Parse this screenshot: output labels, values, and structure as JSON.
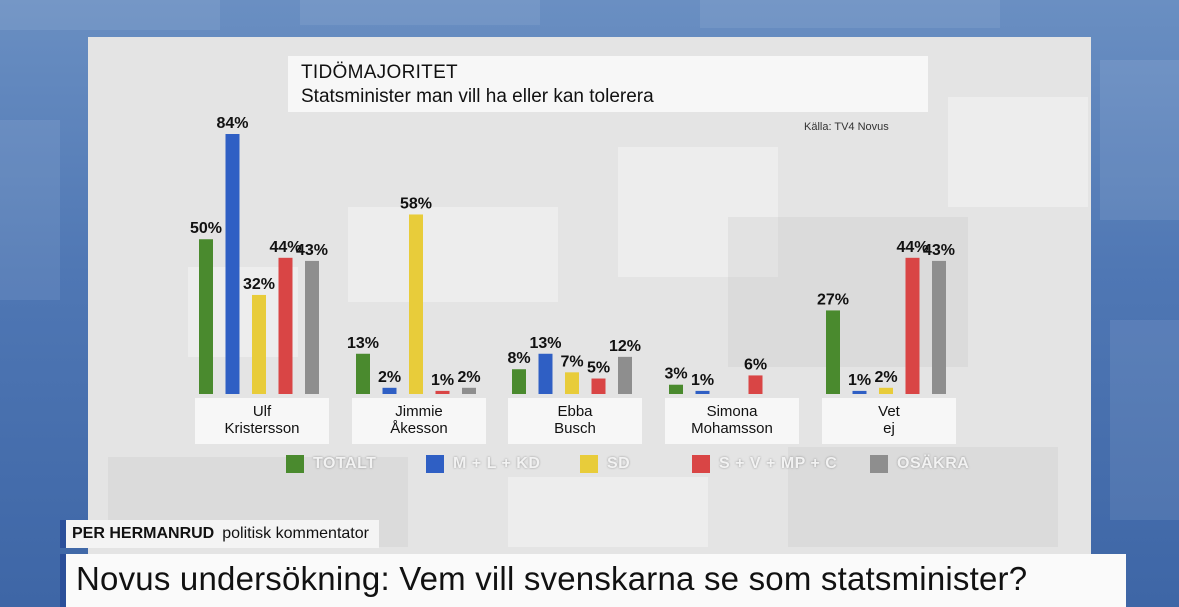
{
  "title": "TIDÖMAJORITET",
  "subtitle": "Statsminister man vill ha eller kan tolerera",
  "source": "Källa: TV4 Novus",
  "lower_third": {
    "name": "PER HERMANRUD",
    "role": "politisk kommentator",
    "headline": "Novus undersökning: Vem vill svenskarna se som statsminister?"
  },
  "colors": {
    "TOTALT": "#4a8a2e",
    "M + L + KD": "#2f5fc4",
    "SD": "#e8cc3a",
    "S + V + MP + C": "#d94545",
    "OSÄKRA": "#8e8e8e"
  },
  "chart_data": {
    "type": "bar",
    "title": "TIDÖMAJORITET",
    "subtitle": "Statsminister man vill ha eller kan tolerera",
    "categories": [
      "Ulf\nKristersson",
      "Jimmie\nÅkesson",
      "Ebba\nBusch",
      "Simona\nMohamsson",
      "Vet\nej"
    ],
    "ylim": [
      0,
      84
    ],
    "series": [
      {
        "name": "TOTALT",
        "values": [
          50,
          13,
          8,
          3,
          27
        ],
        "labels": [
          "50%",
          "13%",
          "8%",
          "3%",
          "27%"
        ]
      },
      {
        "name": "M + L + KD",
        "values": [
          84,
          2,
          13,
          1,
          1
        ],
        "labels": [
          "84%",
          "2%",
          "13%",
          "1%",
          "1%"
        ]
      },
      {
        "name": "SD",
        "values": [
          32,
          58,
          7,
          0,
          2
        ],
        "labels": [
          "32%",
          "58%",
          "7%",
          "",
          "2%"
        ]
      },
      {
        "name": "S + V + MP + C",
        "values": [
          44,
          1,
          5,
          6,
          44
        ],
        "labels": [
          "44%",
          "1%",
          "5%",
          "6%",
          "44%"
        ]
      },
      {
        "name": "OSÄKRA",
        "values": [
          43,
          2,
          12,
          0,
          43
        ],
        "labels": [
          "43%",
          "2%",
          "12%",
          "",
          "43%"
        ]
      }
    ],
    "legend": "bottom",
    "grid": false
  }
}
